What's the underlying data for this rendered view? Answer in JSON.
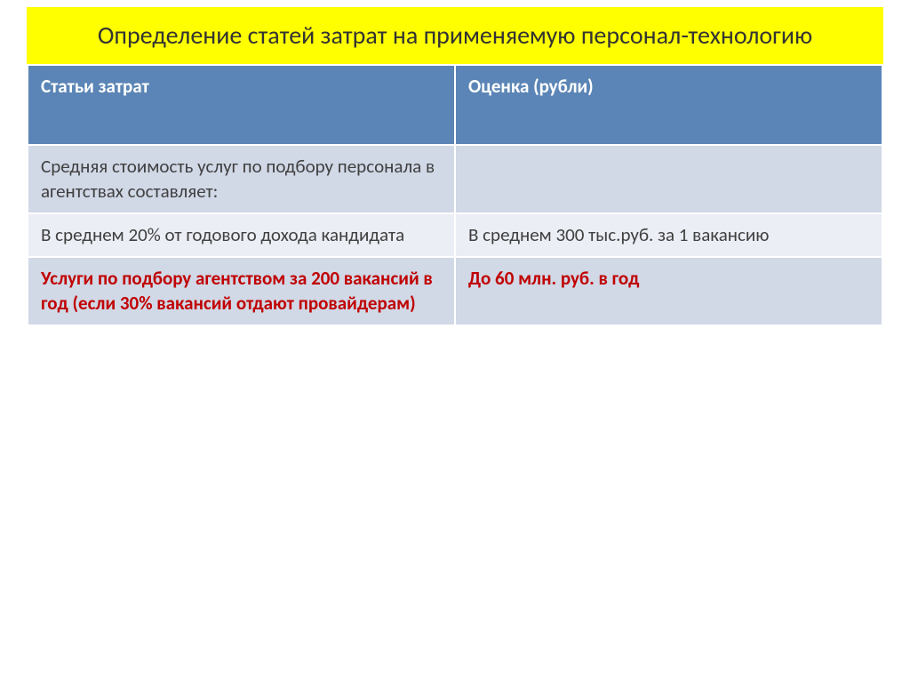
{
  "title": {
    "text": "Определение статей затрат на применяемую  персонал-технологию",
    "background_color": "#ffff00",
    "text_color": "#333333",
    "font_size": 28
  },
  "table": {
    "header_bg": "#5b85b6",
    "header_text_color": "#ffffff",
    "row_bg_a": "#d1d8e6",
    "row_bg_b": "#ebeef5",
    "normal_text_color": "#404040",
    "highlight_text_color": "#c00000",
    "font_size": 21,
    "columns": [
      {
        "label": "Статьи затрат"
      },
      {
        "label": "Оценка (рубли)"
      }
    ],
    "rows": [
      {
        "shade": "a",
        "highlight": false,
        "cells": [
          "Средняя стоимость услуг по подбору персонала в агентствах составляет:",
          ""
        ]
      },
      {
        "shade": "b",
        "highlight": false,
        "cells": [
          "В среднем 20% от годового дохода кандидата",
          "В среднем 300 тыс.руб. за 1 вакансию"
        ]
      },
      {
        "shade": "a",
        "highlight": true,
        "cells": [
          "Услуги по подбору агентством за 200 вакансий в год (если 30% вакансий отдают провайдерам)",
          "До 60 млн. руб. в год"
        ]
      }
    ]
  }
}
